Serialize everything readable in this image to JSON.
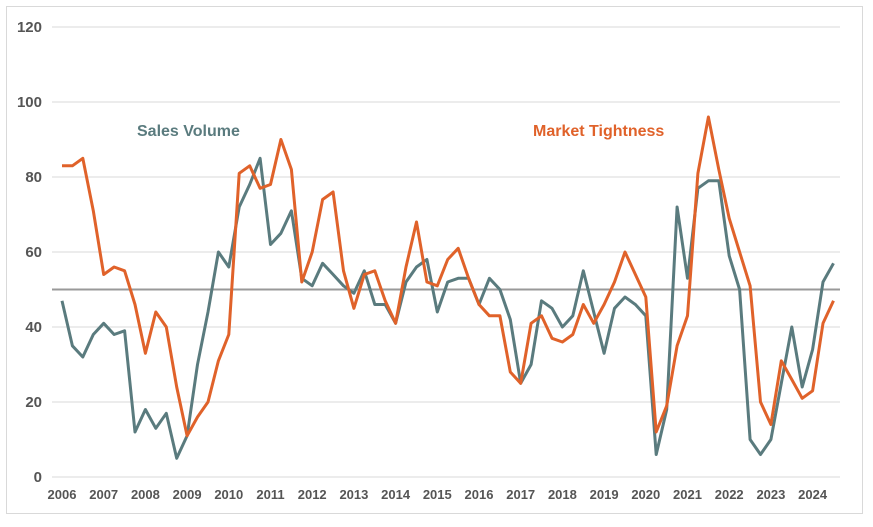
{
  "chart_data": {
    "type": "line",
    "title": "",
    "xlabel": "",
    "ylabel": "",
    "ylim": [
      0,
      120
    ],
    "yticks": [
      0,
      20,
      40,
      60,
      80,
      100,
      120
    ],
    "xtick_labels": [
      "2006",
      "2007",
      "2008",
      "2009",
      "2010",
      "2011",
      "2012",
      "2013",
      "2014",
      "2015",
      "2016",
      "2017",
      "2018",
      "2019",
      "2020",
      "2021",
      "2022",
      "2023",
      "2024"
    ],
    "x_frequency": "quarterly",
    "x_start": "2006 Q1",
    "x_end": "2024 Q3",
    "grid": "horizontal",
    "reference_line": {
      "value": 50,
      "color": "#999999"
    },
    "series": [
      {
        "name": "Sales Volume",
        "color": "#5a7b7e",
        "values": [
          47,
          35,
          32,
          38,
          41,
          38,
          39,
          12,
          18,
          13,
          17,
          5,
          11,
          30,
          44,
          60,
          56,
          72,
          78,
          85,
          62,
          65,
          71,
          53,
          51,
          57,
          54,
          51,
          49,
          55,
          46,
          46,
          41,
          52,
          56,
          58,
          44,
          52,
          53,
          53,
          46,
          53,
          50,
          42,
          25,
          30,
          47,
          45,
          40,
          43,
          55,
          44,
          33,
          45,
          48,
          46,
          43,
          6,
          18,
          72,
          53,
          77,
          79,
          79,
          59,
          50,
          10,
          6,
          10,
          25,
          40,
          24,
          34,
          52,
          57
        ]
      },
      {
        "name": "Market Tightness",
        "color": "#e0622a",
        "values": [
          83,
          83,
          85,
          71,
          54,
          56,
          55,
          46,
          33,
          44,
          40,
          24,
          11,
          16,
          20,
          31,
          38,
          81,
          83,
          77,
          78,
          90,
          82,
          52,
          60,
          74,
          76,
          55,
          45,
          54,
          55,
          47,
          41,
          56,
          68,
          52,
          51,
          58,
          61,
          53,
          46,
          43,
          43,
          28,
          25,
          41,
          43,
          37,
          36,
          38,
          46,
          41,
          46,
          52,
          60,
          54,
          48,
          12,
          19,
          35,
          43,
          81,
          96,
          82,
          69,
          60,
          51,
          20,
          14,
          31,
          26,
          21,
          23,
          41,
          47
        ]
      }
    ]
  }
}
